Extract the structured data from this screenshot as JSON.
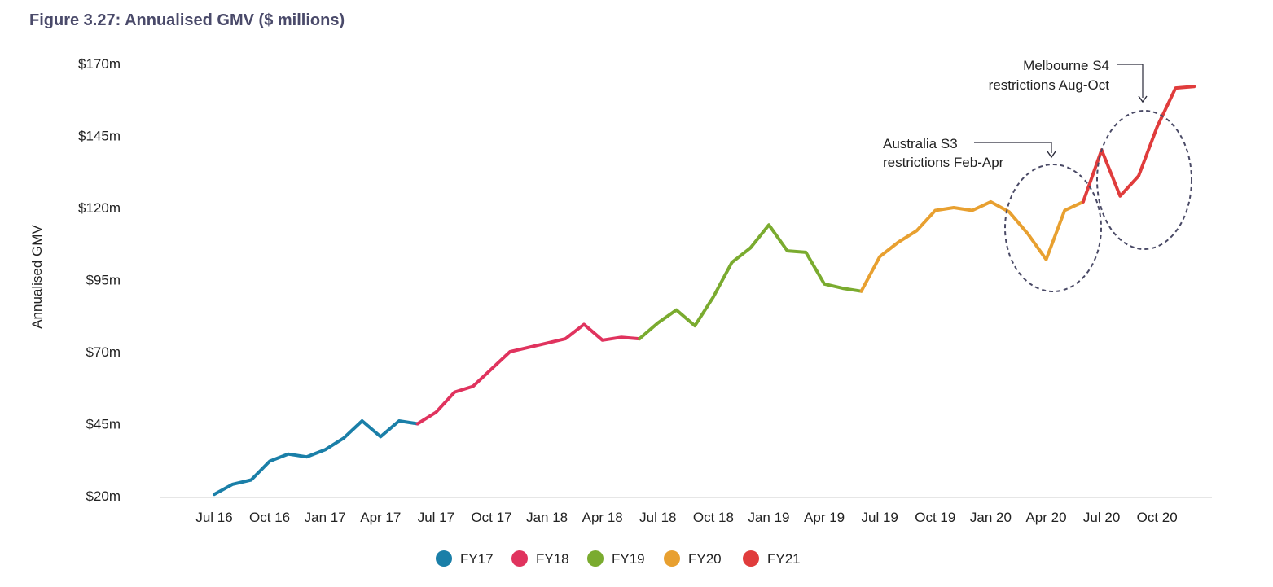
{
  "chart_data": {
    "type": "line",
    "title": "Figure 3.27: Annualised GMV ($ millions)",
    "ylabel": "Annualised GMV",
    "xlabel": "",
    "ylim": [
      20,
      170
    ],
    "yticks": [
      20,
      45,
      70,
      95,
      120,
      145,
      170
    ],
    "ytick_labels": [
      "$20m",
      "$45m",
      "$70m",
      "$95m",
      "$120m",
      "$145m",
      "$170m"
    ],
    "x_tick_labels": [
      "Jul 16",
      "Oct 16",
      "Jan 17",
      "Apr 17",
      "Jul 17",
      "Oct 17",
      "Jan 18",
      "Apr 18",
      "Jul 18",
      "Oct 18",
      "Jan 19",
      "Apr 19",
      "Jul 19",
      "Oct 19",
      "Jan 20",
      "Apr 20",
      "Jul 20",
      "Oct 20"
    ],
    "months_count": 55,
    "series": [
      {
        "name": "FY17",
        "color": "#1a7fa8",
        "start_index": 0,
        "values": [
          20.5,
          24,
          25.5,
          32,
          34.5,
          33.5,
          36,
          40,
          46,
          40.5,
          46,
          45
        ]
      },
      {
        "name": "FY18",
        "color": "#e0335e",
        "start_index": 11,
        "values": [
          45,
          49,
          56,
          58,
          64,
          70,
          71.5,
          73,
          74.5,
          79.5,
          74,
          75,
          74.5
        ]
      },
      {
        "name": "FY19",
        "color": "#7aab2f",
        "start_index": 23,
        "values": [
          74.5,
          80,
          84.5,
          79,
          89,
          101,
          106,
          114,
          105,
          104.5,
          93.5,
          92,
          91
        ]
      },
      {
        "name": "FY20",
        "color": "#e8a030",
        "start_index": 35,
        "values": [
          91,
          103,
          108,
          112,
          119,
          120,
          119,
          122,
          118.5,
          111,
          102,
          119,
          122
        ]
      },
      {
        "name": "FY21",
        "color": "#e03c3c",
        "start_index": 47,
        "values": [
          122,
          140,
          124,
          131,
          148,
          161.5,
          162
        ]
      }
    ],
    "legend": [
      "FY17",
      "FY18",
      "FY19",
      "FY20",
      "FY21"
    ],
    "legend_position": "bottom-center",
    "annotations": [
      {
        "lines": [
          "Australia S3",
          "restrictions Feb-Apr"
        ],
        "target": "Apr 20"
      },
      {
        "lines": [
          "Melbourne S4",
          "restrictions Aug-Oct"
        ],
        "target": "Sep 20"
      }
    ]
  }
}
